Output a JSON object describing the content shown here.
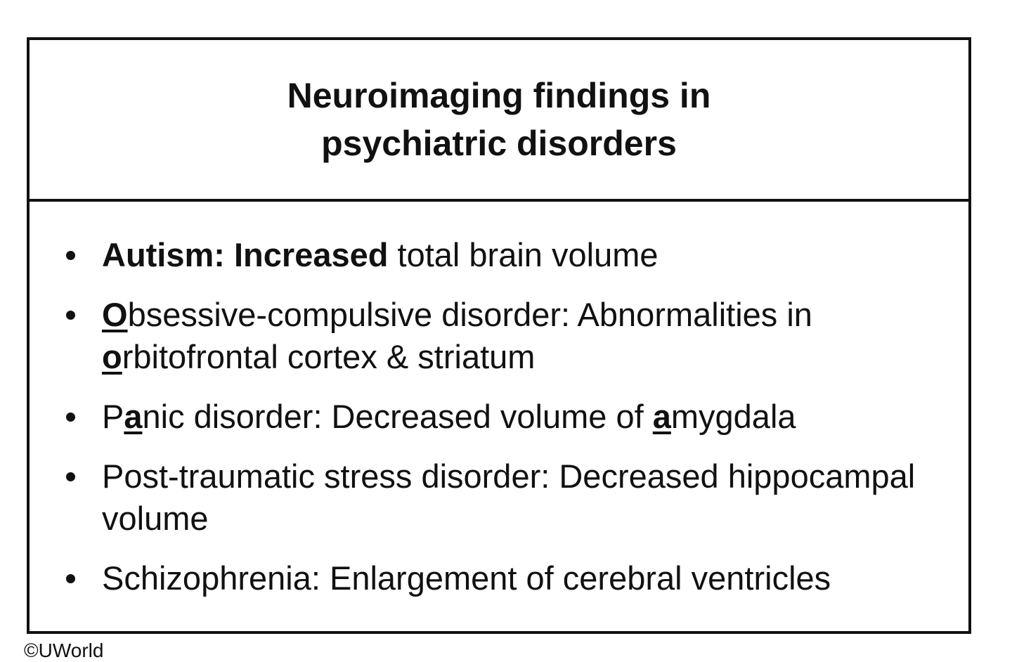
{
  "title": [
    "Neuroimaging findings in",
    "psychiatric disorders"
  ],
  "items": [
    {
      "runs": [
        {
          "text": "Autism: Increased",
          "bold": true
        },
        {
          "text": " total brain volume"
        }
      ]
    },
    {
      "runs": [
        {
          "text": "O",
          "bold": true,
          "underline": true
        },
        {
          "text": "bsessive-compulsive disorder: Abnormalities in "
        },
        {
          "text": "o",
          "bold": true,
          "underline": true
        },
        {
          "text": "rbitofrontal cortex & striatum"
        }
      ]
    },
    {
      "runs": [
        {
          "text": "P"
        },
        {
          "text": "a",
          "bold": true,
          "underline": true
        },
        {
          "text": "nic disorder: Decreased volume of "
        },
        {
          "text": "a",
          "bold": true,
          "underline": true
        },
        {
          "text": "mygdala"
        }
      ]
    },
    {
      "runs": [
        {
          "text": "Post-traumatic stress disorder: Decreased hippocampal volume"
        }
      ]
    },
    {
      "runs": [
        {
          "text": "Schizophrenia: Enlargement of cerebral ventricles"
        }
      ]
    }
  ],
  "footer": "©UWorld"
}
